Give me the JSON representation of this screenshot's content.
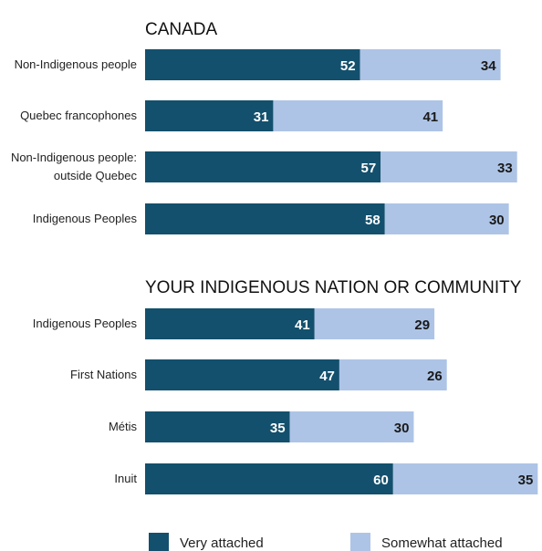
{
  "chart_data": {
    "type": "bar",
    "orientation": "horizontal",
    "stacked": true,
    "xlim": [
      0,
      95
    ],
    "grid": false,
    "legend_position": "bottom",
    "colors": {
      "very_attached": "#13506d",
      "somewhat_attached": "#adc4e6"
    },
    "series_names": [
      "Very attached",
      "Somewhat attached"
    ],
    "panels": [
      {
        "title": "CANADA",
        "categories": [
          [
            "Non-Indigenous people"
          ],
          [
            "Quebec francophones"
          ],
          [
            "Non-Indigenous people:",
            "outside Quebec"
          ],
          [
            "Indigenous Peoples"
          ]
        ],
        "very_attached": [
          52,
          31,
          57,
          58
        ],
        "somewhat_attached": [
          34,
          41,
          33,
          30
        ]
      },
      {
        "title": "YOUR INDIGENOUS NATION OR COMMUNITY",
        "categories": [
          [
            "Indigenous Peoples"
          ],
          [
            "First Nations"
          ],
          [
            "Métis"
          ],
          [
            "Inuit"
          ]
        ],
        "very_attached": [
          41,
          47,
          35,
          60
        ],
        "somewhat_attached": [
          29,
          26,
          30,
          35
        ]
      }
    ]
  }
}
